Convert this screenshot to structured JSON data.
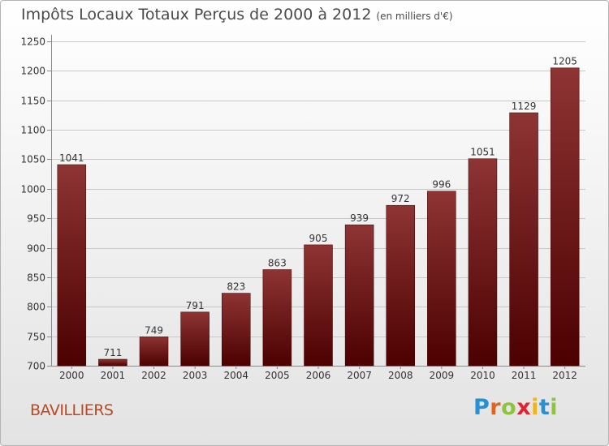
{
  "title": "Impôts Locaux Totaux Perçus de 2000 à 2012",
  "unit_note": "(en milliers d'€)",
  "commune": "BAVILLIERS",
  "logo": {
    "letters": [
      "P",
      "r",
      "o",
      "x",
      "i",
      "t",
      "i"
    ],
    "colors": [
      "#2a8fd0",
      "#e1641c",
      "#8cc43c",
      "#e2222d",
      "#f2b21a",
      "#2a8fd0",
      "#8cc43c"
    ]
  },
  "colors": {
    "bar_top": "#8e3434",
    "bar_bottom": "#4c0000",
    "label": "#333333"
  },
  "chart_data": {
    "type": "bar",
    "title": "Impôts Locaux Totaux Perçus de 2000 à 2012",
    "categories": [
      "2000",
      "2001",
      "2002",
      "2003",
      "2004",
      "2005",
      "2006",
      "2007",
      "2008",
      "2009",
      "2010",
      "2011",
      "2012"
    ],
    "values": [
      1041,
      711,
      749,
      791,
      823,
      863,
      905,
      939,
      972,
      996,
      1051,
      1129,
      1205
    ],
    "ylim": [
      700,
      1250
    ],
    "yticks": [
      700,
      750,
      800,
      850,
      900,
      950,
      1000,
      1050,
      1100,
      1150,
      1200,
      1250
    ],
    "xlabel": "",
    "ylabel": "",
    "grid": true
  }
}
